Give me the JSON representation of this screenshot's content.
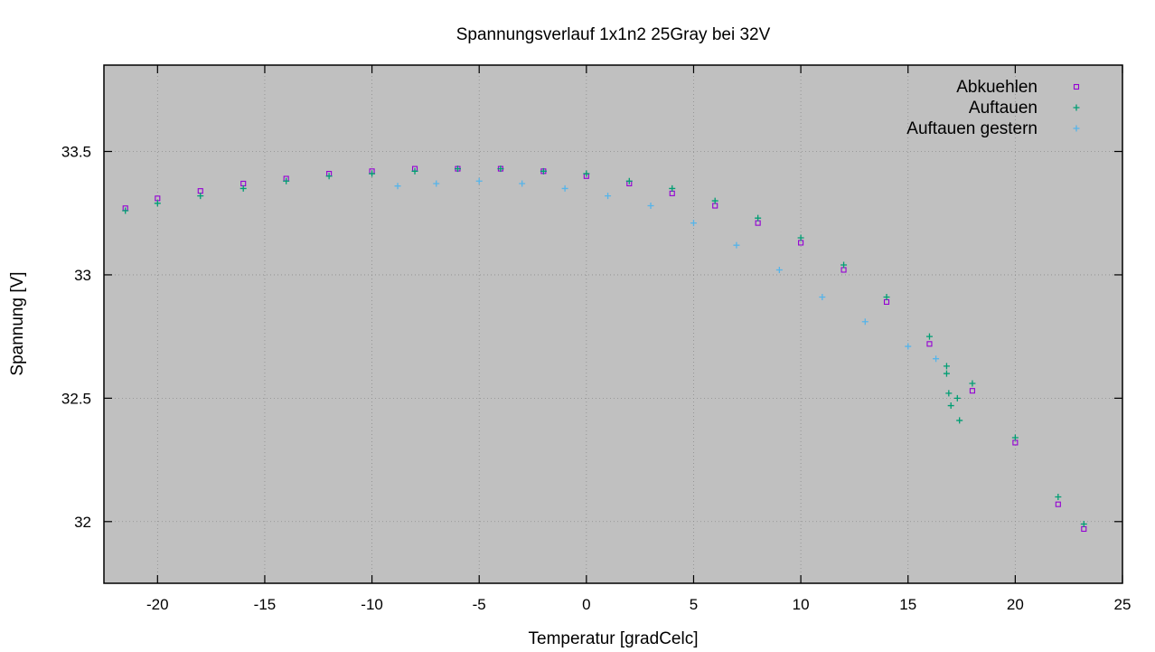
{
  "chart_data": {
    "type": "scatter",
    "title": "Spannungsverlauf 1x1n2 25Gray bei 32V",
    "xlabel": "Temperatur [gradCelc]",
    "ylabel": "Spannung [V]",
    "xlim": [
      -22.5,
      25
    ],
    "ylim": [
      31.75,
      33.85
    ],
    "xticks": [
      -20,
      -15,
      -10,
      -5,
      0,
      5,
      10,
      15,
      20,
      25
    ],
    "yticks": [
      32,
      32.5,
      33,
      33.5
    ],
    "xtick_labels": [
      "-20",
      "-15",
      "-10",
      "-5",
      "0",
      "5",
      "10",
      "15",
      "20",
      "25"
    ],
    "ytick_labels": [
      "32",
      "32.5",
      "33",
      "33.5"
    ],
    "grid": true,
    "background": "#c0c0c0",
    "legend_position": "top-right",
    "series": [
      {
        "name": "Abkuehlen",
        "marker": "open-square",
        "color": "#9400d3",
        "x": [
          -21.5,
          -20,
          -18,
          -16,
          -14,
          -12,
          -10,
          -8,
          -6,
          -4,
          -2,
          0,
          2,
          4,
          6,
          8,
          10,
          12,
          14,
          16,
          18,
          20,
          22,
          23.2
        ],
        "y": [
          33.27,
          33.31,
          33.34,
          33.37,
          33.39,
          33.41,
          33.42,
          33.43,
          33.43,
          33.43,
          33.42,
          33.4,
          33.37,
          33.33,
          33.28,
          33.21,
          33.13,
          33.02,
          32.89,
          32.72,
          32.53,
          32.32,
          32.07,
          31.97
        ]
      },
      {
        "name": "Auftauen",
        "marker": "plus",
        "color": "#009e73",
        "x": [
          -21.5,
          -20,
          -18,
          -16,
          -14,
          -12,
          -10,
          -8,
          -6,
          -4,
          -2,
          0,
          2,
          4,
          6,
          8,
          10,
          12,
          14,
          16,
          18,
          20,
          22,
          23.2,
          16.8,
          16.9,
          17.0,
          17.3,
          17.4,
          16.8
        ],
        "y": [
          33.26,
          33.29,
          33.32,
          33.35,
          33.38,
          33.4,
          33.41,
          33.42,
          33.43,
          33.43,
          33.42,
          33.41,
          33.38,
          33.35,
          33.3,
          33.23,
          33.15,
          33.04,
          32.91,
          32.75,
          32.56,
          32.34,
          32.1,
          31.99,
          32.6,
          32.52,
          32.47,
          32.5,
          32.41,
          32.63
        ]
      },
      {
        "name": "Auftauen gestern",
        "marker": "plus",
        "color": "#56b4e9",
        "x": [
          -8.8,
          -7,
          -5,
          -3,
          -1,
          1,
          3,
          5,
          7,
          9,
          11,
          13,
          15,
          16.3
        ],
        "y": [
          33.36,
          33.37,
          33.38,
          33.37,
          33.35,
          33.32,
          33.28,
          33.21,
          33.12,
          33.02,
          32.91,
          32.81,
          32.71,
          32.66
        ]
      }
    ]
  }
}
